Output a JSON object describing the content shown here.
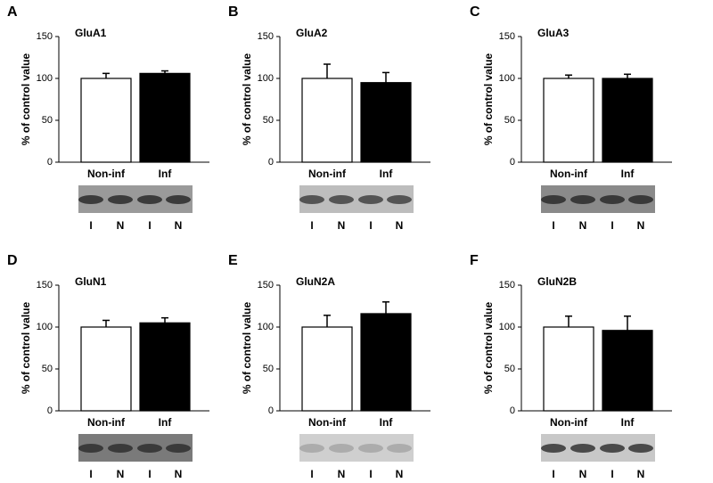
{
  "chart_data": [
    {
      "type": "bar",
      "panel": "A",
      "title": "GluA1",
      "ylabel": "% of control value",
      "categories": [
        "Non-inf",
        "Inf"
      ],
      "values": [
        100,
        106
      ],
      "errors": [
        6,
        3
      ],
      "colors": [
        "#ffffff",
        "#000000"
      ],
      "ylim": [
        0,
        150
      ],
      "yticks": [
        0,
        50,
        100,
        150
      ],
      "lane_labels": [
        "I",
        "N",
        "I",
        "N"
      ]
    },
    {
      "type": "bar",
      "panel": "B",
      "title": "GluA2",
      "ylabel": "% of control value",
      "categories": [
        "Non-inf",
        "Inf"
      ],
      "values": [
        100,
        95
      ],
      "errors": [
        17,
        12
      ],
      "colors": [
        "#ffffff",
        "#000000"
      ],
      "ylim": [
        0,
        150
      ],
      "yticks": [
        0,
        50,
        100,
        150
      ],
      "lane_labels": [
        "I",
        "N",
        "I",
        "N"
      ]
    },
    {
      "type": "bar",
      "panel": "C",
      "title": "GluA3",
      "ylabel": "% of control value",
      "categories": [
        "Non-inf",
        "Inf"
      ],
      "values": [
        100,
        100
      ],
      "errors": [
        4,
        5
      ],
      "colors": [
        "#ffffff",
        "#000000"
      ],
      "ylim": [
        0,
        150
      ],
      "yticks": [
        0,
        50,
        100,
        150
      ],
      "lane_labels": [
        "I",
        "N",
        "I",
        "N"
      ]
    },
    {
      "type": "bar",
      "panel": "D",
      "title": "GluN1",
      "ylabel": "% of control value",
      "categories": [
        "Non-inf",
        "Inf"
      ],
      "values": [
        100,
        105
      ],
      "errors": [
        8,
        6
      ],
      "colors": [
        "#ffffff",
        "#000000"
      ],
      "ylim": [
        0,
        150
      ],
      "yticks": [
        0,
        50,
        100,
        150
      ],
      "lane_labels": [
        "I",
        "N",
        "I",
        "N"
      ]
    },
    {
      "type": "bar",
      "panel": "E",
      "title": "GluN2A",
      "ylabel": "% of control value",
      "categories": [
        "Non-inf",
        "Inf"
      ],
      "values": [
        100,
        116
      ],
      "errors": [
        14,
        14
      ],
      "colors": [
        "#ffffff",
        "#000000"
      ],
      "ylim": [
        0,
        150
      ],
      "yticks": [
        0,
        50,
        100,
        150
      ],
      "lane_labels": [
        "I",
        "N",
        "I",
        "N"
      ]
    },
    {
      "type": "bar",
      "panel": "F",
      "title": "GluN2B",
      "ylabel": "% of control value",
      "categories": [
        "Non-inf",
        "Inf"
      ],
      "values": [
        100,
        96
      ],
      "errors": [
        13,
        17
      ],
      "colors": [
        "#ffffff",
        "#000000"
      ],
      "ylim": [
        0,
        150
      ],
      "yticks": [
        0,
        50,
        100,
        150
      ],
      "lane_labels": [
        "I",
        "N",
        "I",
        "N"
      ]
    }
  ]
}
